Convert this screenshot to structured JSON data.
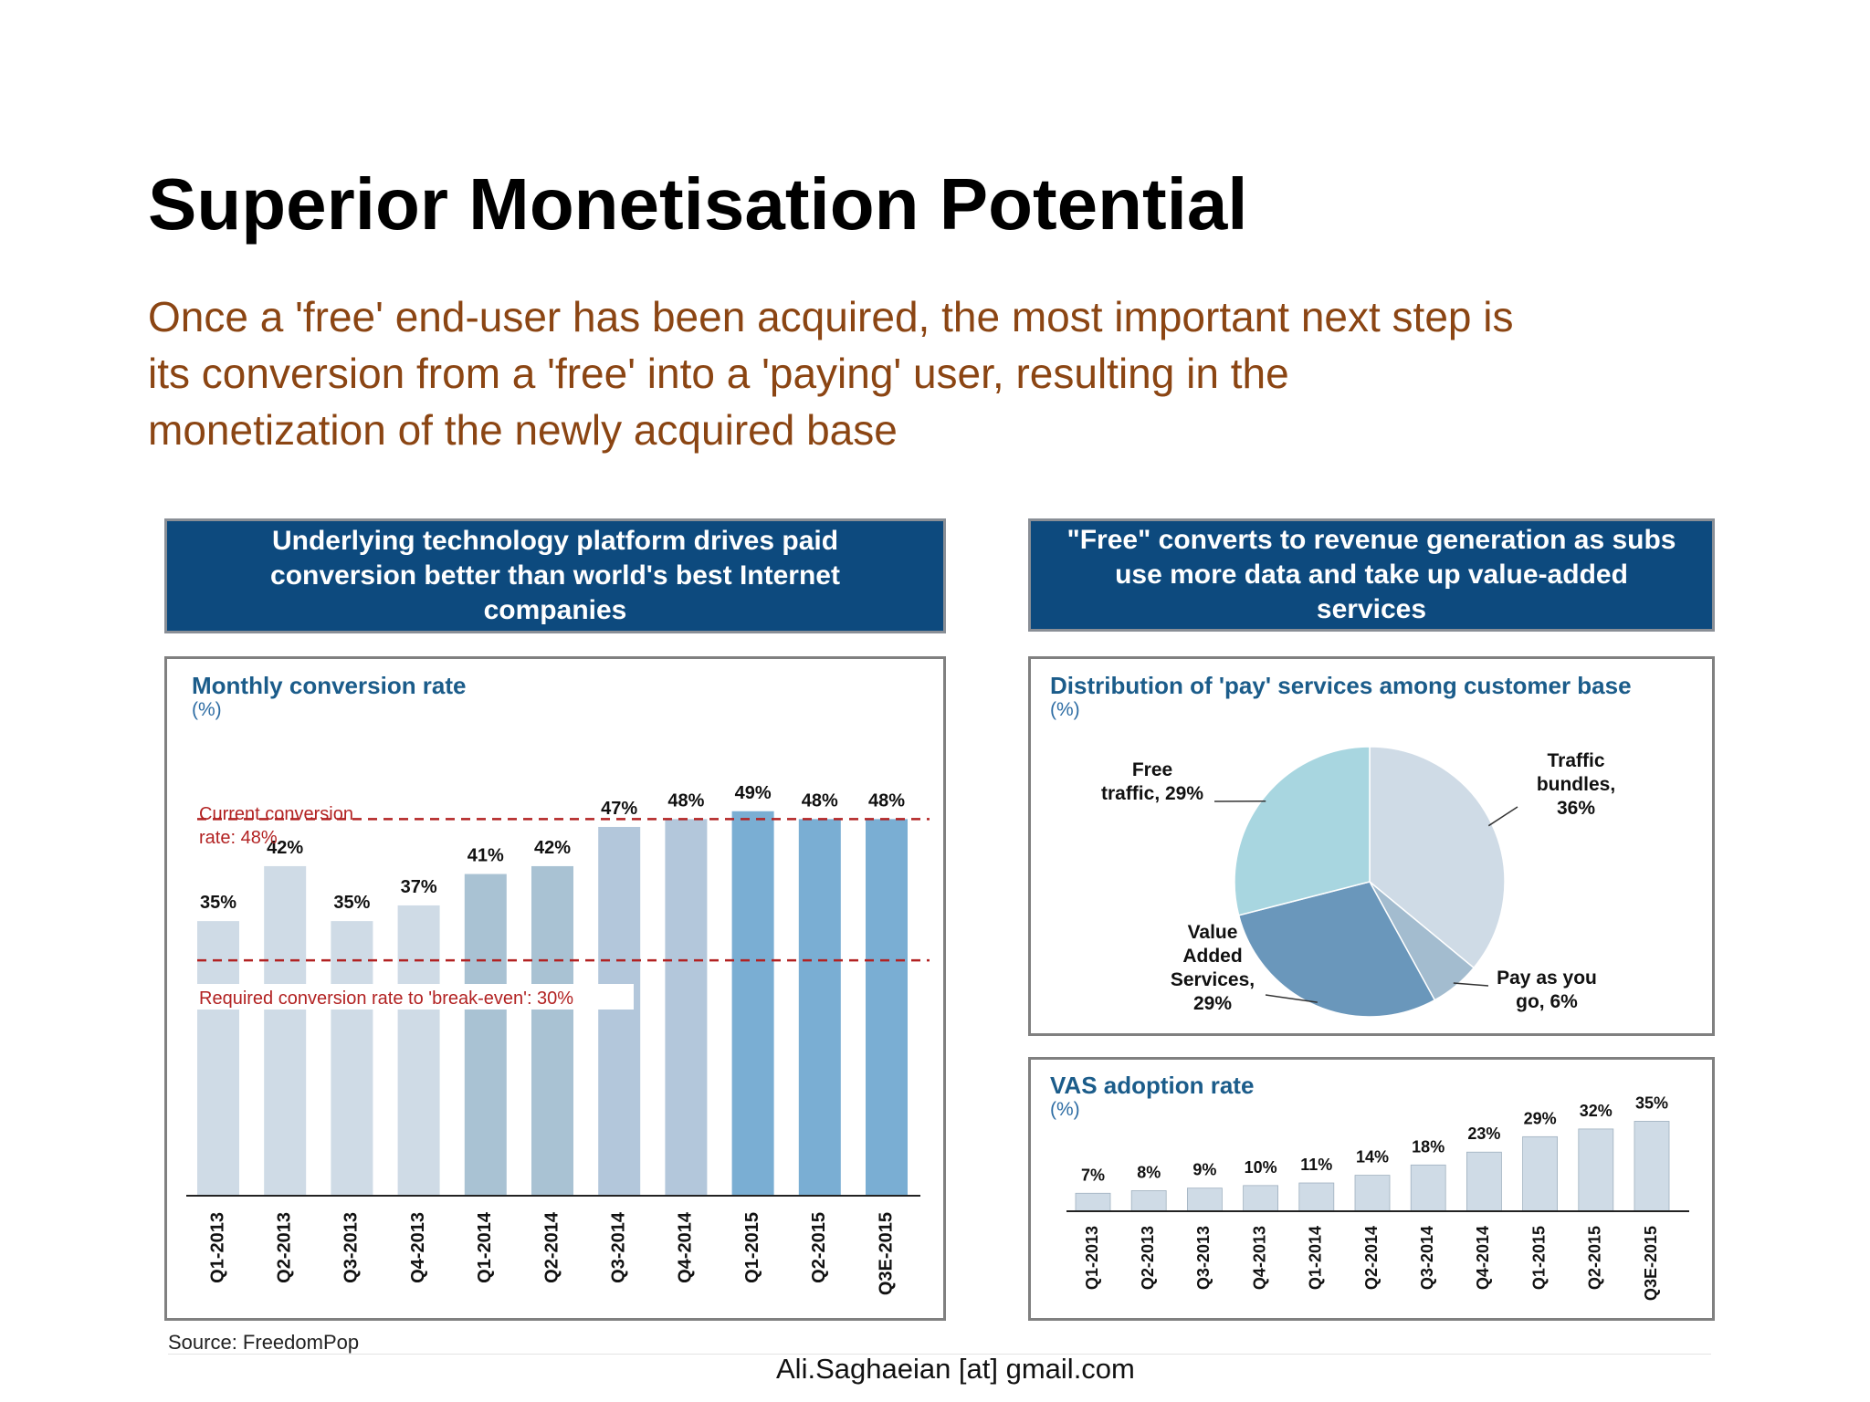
{
  "title": "Superior Monetisation Potential",
  "subtitle_lines": [
    "Once a 'free' end-user has been acquired, the most important next step is",
    "its conversion from a 'free' into a 'paying' user, resulting in the",
    "monetization of the newly acquired base"
  ],
  "banners": {
    "left": [
      "Underlying technology platform drives paid",
      "conversion better than world's best Internet",
      "companies"
    ],
    "right": [
      "\"Free\" converts to revenue generation as subs",
      "use more data and take up value-added",
      "services"
    ]
  },
  "panels": {
    "conversion": {
      "title": "Monthly conversion rate",
      "unit": "(%)"
    },
    "distribution": {
      "title": "Distribution of 'pay' services among customer base",
      "unit": "(%)"
    },
    "vas": {
      "title": "VAS adoption rate",
      "unit": "(%)"
    }
  },
  "source": "Source: FreedomPop",
  "footer": "Ali.Saghaeian [at] gmail.com",
  "colors": {
    "banner": "#0d4a7e",
    "subtitle": "#8b4513",
    "reference_line": "#b22222",
    "panel_title": "#1b5c8a"
  },
  "chart_data": [
    {
      "type": "bar",
      "title": "Monthly conversion rate",
      "unit": "(%)",
      "categories": [
        "Q1-2013",
        "Q2-2013",
        "Q3-2013",
        "Q4-2013",
        "Q1-2014",
        "Q2-2014",
        "Q3-2014",
        "Q4-2014",
        "Q1-2015",
        "Q2-2015",
        "Q3E-2015"
      ],
      "values": [
        35,
        42,
        35,
        37,
        41,
        42,
        47,
        48,
        49,
        48,
        48
      ],
      "data_labels": [
        "35%",
        "42%",
        "35%",
        "37%",
        "41%",
        "42%",
        "47%",
        "48%",
        "49%",
        "48%",
        "48%"
      ],
      "bar_colors": [
        "#cfdbe6",
        "#cfdbe6",
        "#cfdbe6",
        "#cfdbe6",
        "#a9c2d3",
        "#a9c2d3",
        "#b3c7db",
        "#b3c7db",
        "#7aaed3",
        "#7aaed3",
        "#7aaed3"
      ],
      "ylim": [
        0,
        57
      ],
      "reference_lines": [
        {
          "value": 48,
          "label_lines": [
            "Current conversion",
            "rate: 48%"
          ]
        },
        {
          "value": 30,
          "label_lines": [
            "Required conversion rate to 'break-even': 30%"
          ]
        }
      ]
    },
    {
      "type": "pie",
      "title": "Distribution of 'pay' services among customer base",
      "unit": "(%)",
      "slices": [
        {
          "label_lines": [
            "Traffic",
            "bundles,",
            "36%"
          ],
          "value": 36,
          "color": "#cfdbe6"
        },
        {
          "label_lines": [
            "Pay as you",
            "go, 6%"
          ],
          "value": 6,
          "color": "#a3bccf"
        },
        {
          "label_lines": [
            "Value",
            "Added",
            "Services,",
            "29%"
          ],
          "value": 29,
          "color": "#6a97bb"
        },
        {
          "label_lines": [
            "Free",
            "traffic, 29%"
          ],
          "value": 29,
          "color": "#a8d6e0"
        }
      ]
    },
    {
      "type": "bar",
      "title": "VAS adoption rate",
      "unit": "(%)",
      "categories": [
        "Q1-2013",
        "Q2-2013",
        "Q3-2013",
        "Q4-2013",
        "Q1-2014",
        "Q2-2014",
        "Q3-2014",
        "Q4-2014",
        "Q1-2015",
        "Q2-2015",
        "Q3E-2015"
      ],
      "values": [
        7,
        8,
        9,
        10,
        11,
        14,
        18,
        23,
        29,
        32,
        35
      ],
      "data_labels": [
        "7%",
        "8%",
        "9%",
        "10%",
        "11%",
        "14%",
        "18%",
        "23%",
        "29%",
        "32%",
        "35%"
      ],
      "bar_color": "#cfdbe6",
      "ylim": [
        0,
        38
      ]
    }
  ]
}
